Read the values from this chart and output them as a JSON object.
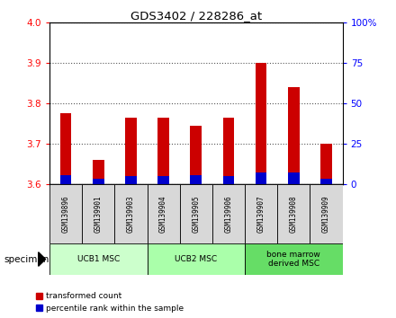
{
  "title": "GDS3402 / 228286_at",
  "samples": [
    "GSM139896",
    "GSM139901",
    "GSM139903",
    "GSM139904",
    "GSM139905",
    "GSM139906",
    "GSM139907",
    "GSM139908",
    "GSM139909"
  ],
  "transformed_count": [
    3.775,
    3.66,
    3.765,
    3.765,
    3.745,
    3.765,
    3.9,
    3.84,
    3.7
  ],
  "percentile_rank": [
    5.5,
    3.5,
    5.0,
    5.0,
    5.5,
    5.0,
    7.5,
    7.5,
    3.5
  ],
  "bar_bottom": 3.6,
  "ylim_left": [
    3.6,
    4.0
  ],
  "ylim_right": [
    0,
    100
  ],
  "yticks_left": [
    3.6,
    3.7,
    3.8,
    3.9,
    4.0
  ],
  "yticks_right": [
    0,
    25,
    50,
    75,
    100
  ],
  "ytick_labels_right": [
    "0",
    "25",
    "50",
    "75",
    "100%"
  ],
  "groups": [
    {
      "label": "UCB1 MSC",
      "indices": [
        0,
        1,
        2
      ],
      "color": "#ccffcc"
    },
    {
      "label": "UCB2 MSC",
      "indices": [
        3,
        4,
        5
      ],
      "color": "#aaffaa"
    },
    {
      "label": "bone marrow\nderived MSC",
      "indices": [
        6,
        7,
        8
      ],
      "color": "#66dd66"
    }
  ],
  "red_color": "#cc0000",
  "blue_color": "#0000cc",
  "bar_width": 0.35,
  "grid_color": "#555555",
  "bg_color": "#d8d8d8",
  "specimen_label": "specimen",
  "legend_red": "transformed count",
  "legend_blue": "percentile rank within the sample"
}
